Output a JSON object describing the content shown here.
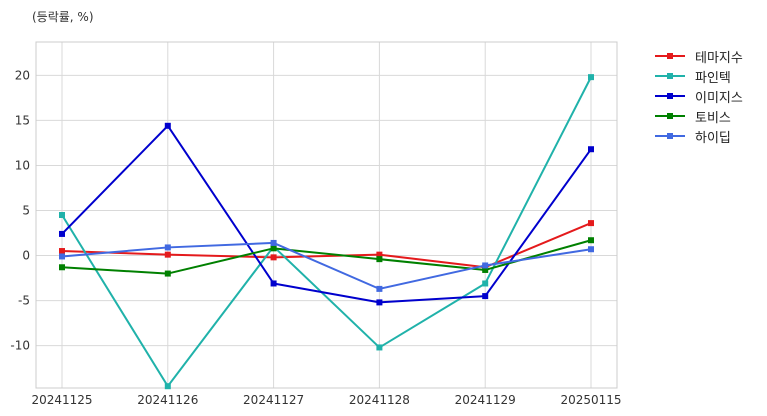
{
  "chart_data": {
    "type": "line",
    "ylabel": "(등락률, %)",
    "x": [
      "20241125",
      "20241126",
      "20241127",
      "20241128",
      "20241129",
      "20250115"
    ],
    "ylim": [
      -14.7,
      23.7
    ],
    "yticks": [
      -10,
      -5,
      0,
      5,
      10,
      15,
      20
    ],
    "grid": true,
    "legend_position": "top-right-outside",
    "series": [
      {
        "name": "테마지수",
        "color": "#e41a1c",
        "values": [
          0.5,
          0.1,
          -0.2,
          0.1,
          -1.3,
          3.6
        ]
      },
      {
        "name": "파인텍",
        "color": "#20b2aa",
        "values": [
          4.5,
          -14.5,
          1.0,
          -10.2,
          -3.1,
          19.8
        ]
      },
      {
        "name": "이미지스",
        "color": "#0000cd",
        "values": [
          2.4,
          14.4,
          -3.1,
          -5.2,
          -4.5,
          11.8
        ]
      },
      {
        "name": "토비스",
        "color": "#008000",
        "values": [
          -1.3,
          -2.0,
          0.8,
          -0.4,
          -1.6,
          1.7
        ]
      },
      {
        "name": "하이딥",
        "color": "#4169e1",
        "values": [
          -0.1,
          0.9,
          1.4,
          -3.7,
          -1.1,
          0.7
        ]
      }
    ]
  }
}
